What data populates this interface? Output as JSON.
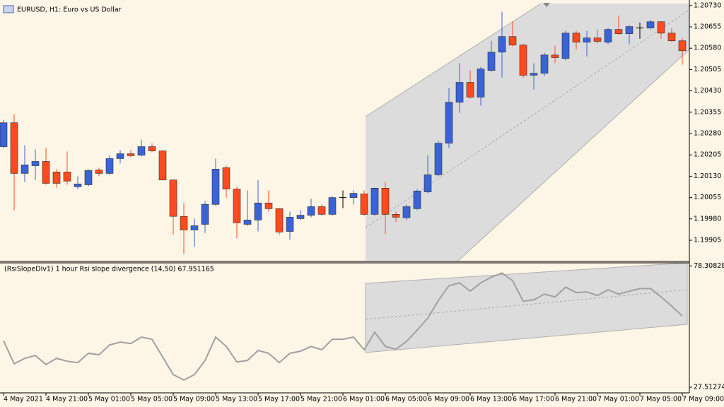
{
  "chart_data": [
    {
      "type": "candlestick",
      "title": "EURUSD, H1:  Euro vs US Dollar",
      "up_color": "#3a63d8",
      "down_color": "#ff4a1f",
      "flat_color": "#000000",
      "open": [
        1.20234,
        1.20318,
        1.2014,
        1.20167,
        1.20182,
        1.20145,
        1.20145,
        1.20093,
        1.201,
        1.20152,
        1.2014,
        1.20192,
        1.20209,
        1.20204,
        1.20234,
        1.20219,
        1.20117,
        1.19989,
        1.19941,
        1.19961,
        1.20031,
        1.2016,
        1.20085,
        1.19961,
        1.19976,
        1.20036,
        1.20016,
        1.19936,
        1.19981,
        1.19993,
        1.20023,
        1.19996,
        1.20055,
        1.20055,
        1.20068,
        1.19996,
        1.20088,
        1.19996,
        1.19984,
        1.20016,
        1.20075,
        1.20135,
        1.20246,
        1.2039,
        1.2046,
        1.20408,
        1.20502,
        1.20566,
        1.20621,
        1.20591,
        1.20485,
        1.20492,
        1.20556,
        1.20544,
        1.20633,
        1.20601,
        1.20616,
        1.20601,
        1.20646,
        1.20631,
        1.20651,
        1.20651,
        1.20673,
        1.20633,
        1.20606
      ],
      "high": [
        1.20328,
        1.20348,
        1.20239,
        1.20224,
        1.20229,
        1.20155,
        1.20217,
        1.2013,
        1.20155,
        1.2016,
        1.20204,
        1.20222,
        1.20222,
        1.20259,
        1.20246,
        1.20222,
        1.20117,
        1.20036,
        1.19981,
        1.20043,
        1.20192,
        1.20167,
        1.20093,
        1.2008,
        1.20117,
        1.2008,
        1.20018,
        1.20006,
        1.20011,
        1.20051,
        1.20031,
        1.2006,
        1.2008,
        1.2008,
        1.2008,
        1.2009,
        1.2011,
        1.20006,
        1.20031,
        1.20085,
        1.20204,
        1.20254,
        1.2044,
        1.20527,
        1.20502,
        1.20514,
        1.20606,
        1.20708,
        1.20675,
        1.20596,
        1.20527,
        1.20564,
        1.20589,
        1.20641,
        1.20641,
        1.20641,
        1.20646,
        1.20651,
        1.20695,
        1.20661,
        1.2067,
        1.2068,
        1.20675,
        1.20651,
        1.20616
      ],
      "low": [
        1.20229,
        1.20011,
        1.2011,
        1.20117,
        1.201,
        1.2009,
        1.201,
        1.20085,
        1.20095,
        1.2013,
        1.20135,
        1.20175,
        1.20197,
        1.20199,
        1.20214,
        1.20115,
        1.19924,
        1.19857,
        1.19882,
        1.19931,
        1.20026,
        1.20055,
        1.19912,
        1.19956,
        1.19936,
        1.20006,
        1.19924,
        1.19907,
        1.19976,
        1.19986,
        1.19991,
        1.19991,
        1.20018,
        1.20031,
        1.19991,
        1.19991,
        1.19927,
        1.19969,
        1.19976,
        1.20011,
        1.2007,
        1.2013,
        1.20229,
        1.20353,
        1.20403,
        1.20378,
        1.20497,
        1.20477,
        1.20586,
        1.20477,
        1.20435,
        1.20482,
        1.20527,
        1.20537,
        1.20576,
        1.20551,
        1.20596,
        1.20594,
        1.20626,
        1.20594,
        1.20613,
        1.20646,
        1.20613,
        1.20601,
        1.20522
      ],
      "close": [
        1.20318,
        1.2014,
        1.2017,
        1.20182,
        1.20105,
        1.20105,
        1.20113,
        1.20103,
        1.2015,
        1.2014,
        1.20192,
        1.20209,
        1.20202,
        1.20234,
        1.20219,
        1.20117,
        1.19989,
        1.19941,
        1.19956,
        1.20031,
        1.20155,
        1.20085,
        1.19966,
        1.19976,
        1.20036,
        1.20016,
        1.19934,
        1.19986,
        1.19993,
        1.20023,
        1.19996,
        1.20055,
        1.20055,
        1.2007,
        1.19996,
        1.20088,
        1.19996,
        1.19986,
        1.20023,
        1.20078,
        1.20135,
        1.20246,
        1.2039,
        1.2046,
        1.20408,
        1.20507,
        1.20566,
        1.20621,
        1.20591,
        1.20485,
        1.20492,
        1.20556,
        1.20547,
        1.20633,
        1.20601,
        1.20616,
        1.20604,
        1.20646,
        1.20631,
        1.20656,
        1.20651,
        1.20673,
        1.20633,
        1.20606,
        1.20571
      ],
      "ylim": [
        1.19833,
        1.20737
      ],
      "yticks": [
        {
          "value": 1.2073,
          "label": "1.20730"
        },
        1.20655,
        {
          "value": 1.2058,
          "label": "1.20580"
        },
        1.20505,
        {
          "value": 1.2043,
          "label": "1.20430"
        },
        1.20355,
        {
          "value": 1.2028,
          "label": "1.20280"
        },
        1.20205,
        {
          "value": 1.2013,
          "label": "1.20130"
        },
        1.20055,
        {
          "value": 1.1998,
          "label": "1.19980"
        },
        1.19905
      ]
    },
    {
      "type": "line",
      "title": "(RsiSlopeDiv1) 1 hour Rsi slope divergence (14,50) 67.951165",
      "color": "#a0a0a0",
      "categories": [
        "4 May 2021",
        null,
        null,
        null,
        "4 May 21:00",
        null,
        null,
        null,
        "5 May 01:00",
        null,
        null,
        null,
        "5 May 05:00",
        null,
        null,
        null,
        "5 May 09:00",
        null,
        null,
        null,
        "5 May 13:00",
        null,
        null,
        null,
        "5 May 17:00",
        null,
        null,
        null,
        "5 May 21:00",
        null,
        null,
        null,
        "6 May 01:00",
        null,
        null,
        null,
        "6 May 05:00",
        null,
        null,
        null,
        "6 May 09:00",
        null,
        null,
        null,
        "6 May 13:00",
        null,
        null,
        null,
        "6 May 17:00",
        null,
        null,
        null,
        "6 May 21:00",
        null,
        null,
        null,
        "7 May 01:00",
        null,
        null,
        null,
        "7 May 05:00",
        null,
        null,
        null,
        "7 May 09:00"
      ],
      "values": [
        47.0,
        37.3,
        39.6,
        40.8,
        37.0,
        39.6,
        38.4,
        37.8,
        41.7,
        41.1,
        45.2,
        46.4,
        45.8,
        48.5,
        47.6,
        40.2,
        32.8,
        30.5,
        32.8,
        38.7,
        48.5,
        44.6,
        38.1,
        38.7,
        42.9,
        41.7,
        37.8,
        41.7,
        42.6,
        44.6,
        43.2,
        47.6,
        47.6,
        48.5,
        43.2,
        50.5,
        44.6,
        43.4,
        46.7,
        51.4,
        56.4,
        63.8,
        70.0,
        71.2,
        67.7,
        71.2,
        73.6,
        75.3,
        72.1,
        63.5,
        64.1,
        66.5,
        65.3,
        69.4,
        67.1,
        67.4,
        65.9,
        68.3,
        66.5,
        67.7,
        68.8,
        68.8,
        65.3,
        61.5,
        57.3
      ],
      "ylim": [
        26.33,
        79.57
      ],
      "yticks": [
        78.308285,
        27.512745
      ]
    }
  ]
}
